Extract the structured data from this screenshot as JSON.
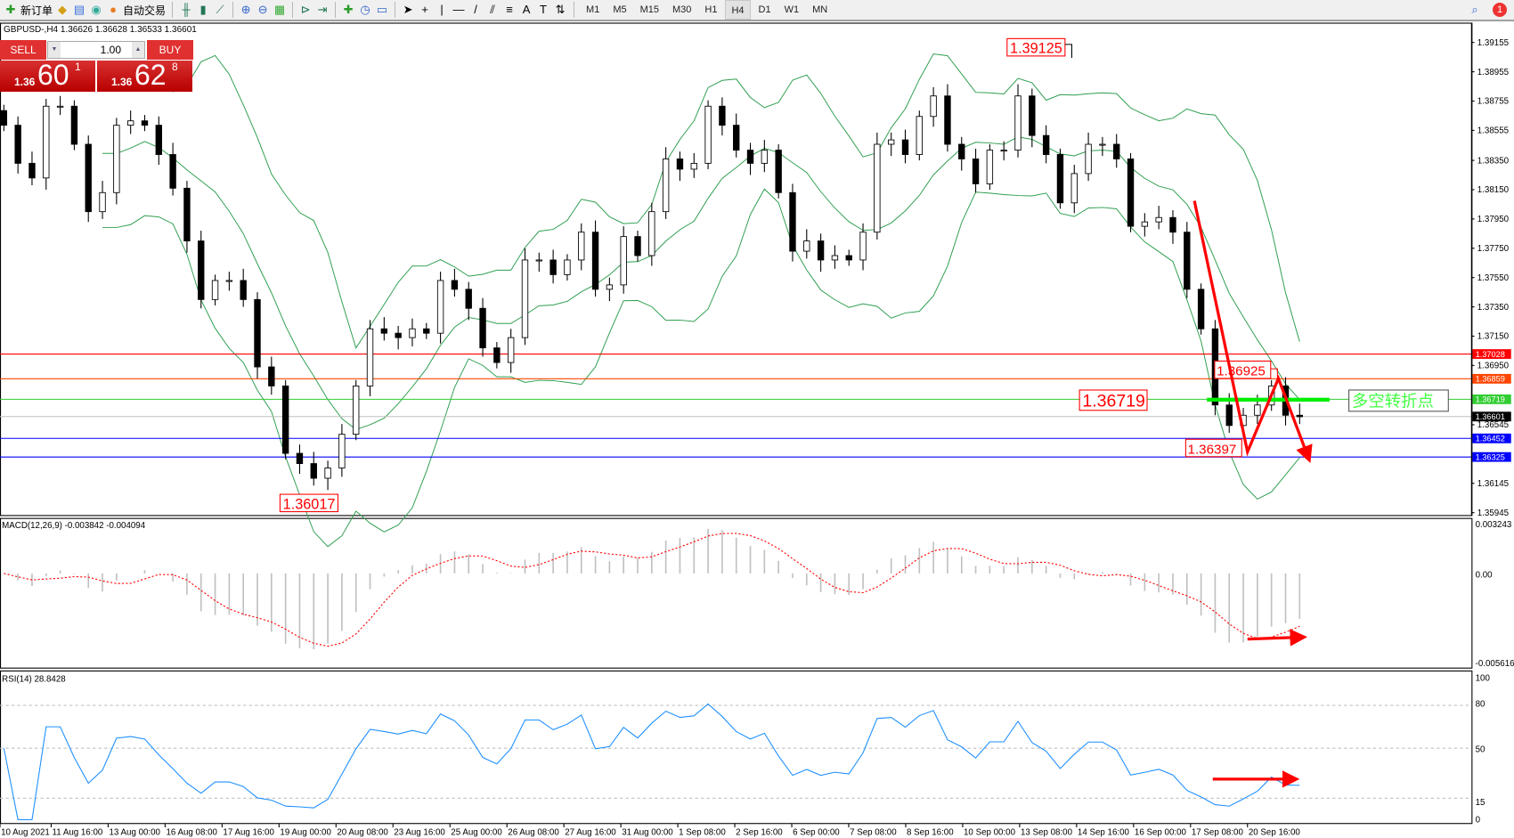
{
  "toolbar": {
    "items": [
      {
        "icon": "new-order-icon",
        "label": "新订单"
      },
      {
        "icon": "market-watch-icon",
        "label": ""
      },
      {
        "icon": "data-window-icon",
        "label": ""
      },
      {
        "icon": "signals-icon",
        "label": ""
      },
      {
        "icon": "auto-trading-icon",
        "label": "自动交易"
      }
    ],
    "timeframes": [
      "M1",
      "M5",
      "M15",
      "M30",
      "H1",
      "H4",
      "D1",
      "W1",
      "MN"
    ],
    "active_timeframe": "H4",
    "notification_count": "1"
  },
  "chart": {
    "title": "GBPUSD-,H4  1.36626 1.36628 1.36533 1.36601",
    "trade_panel": {
      "sell_label": "SELL",
      "buy_label": "BUY",
      "lot": "1.00",
      "sell": {
        "a": "1.36",
        "m": "60",
        "c": "1"
      },
      "buy": {
        "a": "1.36",
        "m": "62",
        "c": "8"
      }
    },
    "price_axis": [
      "1.39155",
      "1.38955",
      "1.38755",
      "1.38555",
      "1.38350",
      "1.38150",
      "1.37950",
      "1.37750",
      "1.37550",
      "1.37350",
      "1.37150",
      "1.36950",
      "1.36545",
      "1.36145",
      "1.35945"
    ],
    "price_range": [
      1.35945,
      1.39155
    ],
    "levels": [
      {
        "price": "1.37028",
        "color": "#ff0000"
      },
      {
        "price": "1.36859",
        "color": "#ff4500"
      },
      {
        "price": "1.36719",
        "color": "#32cd32"
      },
      {
        "price": "1.36601",
        "color": "#000000",
        "line": "#c0c0c0"
      },
      {
        "price": "1.36452",
        "color": "#0000ff"
      },
      {
        "price": "1.36325",
        "color": "#0000ff"
      }
    ],
    "annotations": {
      "high": "1.39125",
      "low": "1.36017",
      "pivot": "1.36719",
      "swing_high": "1.36925",
      "swing_low": "1.36397",
      "pivot_text": "多空转折点"
    },
    "closes": [
      1.3859,
      1.3833,
      1.3823,
      1.3872,
      1.3872,
      1.3846,
      1.38,
      1.3813,
      1.3859,
      1.3862,
      1.3859,
      1.3839,
      1.3816,
      1.378,
      1.374,
      1.3753,
      1.3753,
      1.374,
      1.3694,
      1.3681,
      1.3635,
      1.3628,
      1.3618,
      1.3625,
      1.3648,
      1.3681,
      1.372,
      1.3717,
      1.3714,
      1.372,
      1.3717,
      1.3753,
      1.3747,
      1.3734,
      1.3707,
      1.3697,
      1.3714,
      1.3767,
      1.3767,
      1.3757,
      1.3767,
      1.3786,
      1.3747,
      1.375,
      1.3783,
      1.377,
      1.38,
      1.3836,
      1.3829,
      1.3833,
      1.3872,
      1.3859,
      1.3842,
      1.3833,
      1.3842,
      1.3813,
      1.3773,
      1.378,
      1.3767,
      1.377,
      1.3767,
      1.3786,
      1.3846,
      1.3849,
      1.3839,
      1.3865,
      1.3879,
      1.3846,
      1.3836,
      1.3819,
      1.3842,
      1.3842,
      1.3879,
      1.3852,
      1.3839,
      1.3806,
      1.3826,
      1.3846,
      1.3846,
      1.3836,
      1.379,
      1.3793,
      1.3796,
      1.3786,
      1.3747,
      1.372,
      1.3668,
      1.3654,
      1.3661,
      1.3668,
      1.3681,
      1.3661,
      1.366
    ]
  },
  "macd": {
    "label": "MACD(12,26,9) -0.003842 -0.004094",
    "axis": [
      "0.003243",
      "0.00",
      "-0.005616"
    ],
    "range": [
      -0.005616,
      0.003243
    ]
  },
  "rsi": {
    "label": "RSI(14) 28.8428",
    "axis": [
      "100",
      "80",
      "50",
      "15",
      "0"
    ]
  },
  "time_axis": [
    "10 Aug 2021",
    "11 Aug 16:00",
    "13 Aug 00:00",
    "16 Aug 08:00",
    "17 Aug 16:00",
    "19 Aug 00:00",
    "20 Aug 08:00",
    "23 Aug 16:00",
    "25 Aug 00:00",
    "26 Aug 08:00",
    "27 Aug 16:00",
    "31 Aug 00:00",
    "1 Sep 08:00",
    "2 Sep 16:00",
    "6 Sep 00:00",
    "7 Sep 08:00",
    "8 Sep 16:00",
    "10 Sep 00:00",
    "13 Sep 08:00",
    "14 Sep 16:00",
    "16 Sep 00:00",
    "17 Sep 08:00",
    "20 Sep 16:00"
  ],
  "colors": {
    "bands": "#2e9e4f",
    "rsi": "#1e90ff",
    "signal": "#ff0000",
    "histogram": "#c0c0c0",
    "arrows": "#ff0000"
  }
}
